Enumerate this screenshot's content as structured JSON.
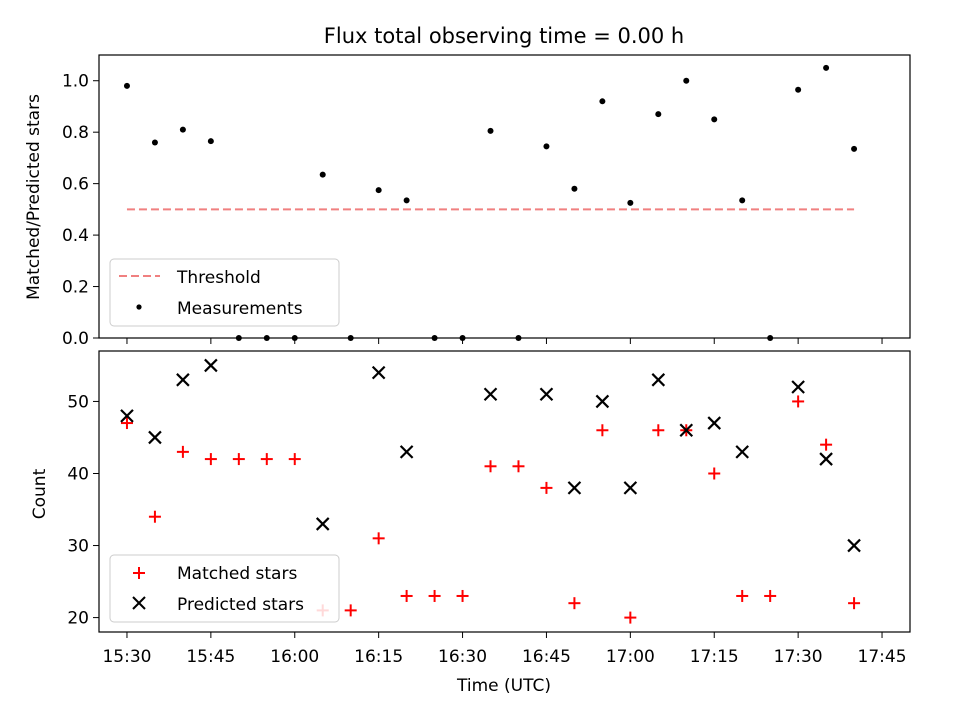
{
  "title": "Flux total observing time = 0.00 h",
  "colors": {
    "threshold": "#f08080",
    "measurements": "#000000",
    "matched": "#ff0000",
    "predicted": "#000000"
  },
  "chart_data": [
    {
      "type": "scatter",
      "ylabel": "Matched/Predicted stars",
      "xlabel": "",
      "ylim": [
        0,
        1.1
      ],
      "yticks": [
        "0.0",
        "0.2",
        "0.4",
        "0.6",
        "0.8",
        "1.0"
      ],
      "xticks": [
        "15:30",
        "15:45",
        "16:00",
        "16:15",
        "16:30",
        "16:45",
        "17:00",
        "17:15",
        "17:30",
        "17:45"
      ],
      "xlim_minutes_after_1500": [
        25,
        170
      ],
      "legend_position": "lower-left",
      "threshold": {
        "name": "Threshold",
        "value": 0.5,
        "x_from": "15:30",
        "x_to": "17:40"
      },
      "series": [
        {
          "name": "Measurements",
          "marker": "dot",
          "points": [
            [
              "15:30",
              0.98
            ],
            [
              "15:35",
              0.76
            ],
            [
              "15:40",
              0.81
            ],
            [
              "15:45",
              0.765
            ],
            [
              "15:50",
              0.0
            ],
            [
              "15:55",
              0.0
            ],
            [
              "16:00",
              0.0
            ],
            [
              "16:05",
              0.635
            ],
            [
              "16:10",
              0.0
            ],
            [
              "16:15",
              0.575
            ],
            [
              "16:20",
              0.535
            ],
            [
              "16:25",
              0.0
            ],
            [
              "16:30",
              0.0
            ],
            [
              "16:35",
              0.805
            ],
            [
              "16:40",
              0.0
            ],
            [
              "16:45",
              0.745
            ],
            [
              "16:50",
              0.58
            ],
            [
              "16:55",
              0.92
            ],
            [
              "17:00",
              0.525
            ],
            [
              "17:05",
              0.87
            ],
            [
              "17:10",
              1.0
            ],
            [
              "17:15",
              0.85
            ],
            [
              "17:20",
              0.535
            ],
            [
              "17:25",
              0.0
            ],
            [
              "17:30",
              0.965
            ],
            [
              "17:35",
              1.05
            ],
            [
              "17:40",
              0.735
            ]
          ]
        }
      ]
    },
    {
      "type": "scatter",
      "ylabel": "Count",
      "xlabel": "Time (UTC)",
      "ylim": [
        18,
        57
      ],
      "yticks": [
        "20",
        "30",
        "40",
        "50"
      ],
      "xticks": [
        "15:30",
        "15:45",
        "16:00",
        "16:15",
        "16:30",
        "16:45",
        "17:00",
        "17:15",
        "17:30",
        "17:45"
      ],
      "xlim_minutes_after_1500": [
        25,
        170
      ],
      "legend_position": "lower-left",
      "series": [
        {
          "name": "Matched stars",
          "marker": "plus",
          "points": [
            [
              "15:30",
              47
            ],
            [
              "15:35",
              34
            ],
            [
              "15:40",
              43
            ],
            [
              "15:45",
              42
            ],
            [
              "15:50",
              42
            ],
            [
              "15:55",
              42
            ],
            [
              "16:00",
              42
            ],
            [
              "16:05",
              21
            ],
            [
              "16:10",
              21
            ],
            [
              "16:15",
              31
            ],
            [
              "16:20",
              23
            ],
            [
              "16:25",
              23
            ],
            [
              "16:30",
              23
            ],
            [
              "16:35",
              41
            ],
            [
              "16:40",
              41
            ],
            [
              "16:45",
              38
            ],
            [
              "16:50",
              22
            ],
            [
              "16:55",
              46
            ],
            [
              "17:00",
              20
            ],
            [
              "17:05",
              46
            ],
            [
              "17:10",
              46
            ],
            [
              "17:15",
              40
            ],
            [
              "17:20",
              23
            ],
            [
              "17:25",
              23
            ],
            [
              "17:30",
              50
            ],
            [
              "17:35",
              44
            ],
            [
              "17:40",
              22
            ]
          ]
        },
        {
          "name": "Predicted stars",
          "marker": "x",
          "points": [
            [
              "15:30",
              48
            ],
            [
              "15:35",
              45
            ],
            [
              "15:40",
              53
            ],
            [
              "15:45",
              55
            ],
            [
              "16:05",
              33
            ],
            [
              "16:15",
              54
            ],
            [
              "16:20",
              43
            ],
            [
              "16:35",
              51
            ],
            [
              "16:45",
              51
            ],
            [
              "16:50",
              38
            ],
            [
              "16:55",
              50
            ],
            [
              "17:00",
              38
            ],
            [
              "17:05",
              53
            ],
            [
              "17:10",
              46
            ],
            [
              "17:15",
              47
            ],
            [
              "17:20",
              43
            ],
            [
              "17:30",
              52
            ],
            [
              "17:35",
              42
            ],
            [
              "17:40",
              30
            ]
          ]
        }
      ]
    }
  ]
}
